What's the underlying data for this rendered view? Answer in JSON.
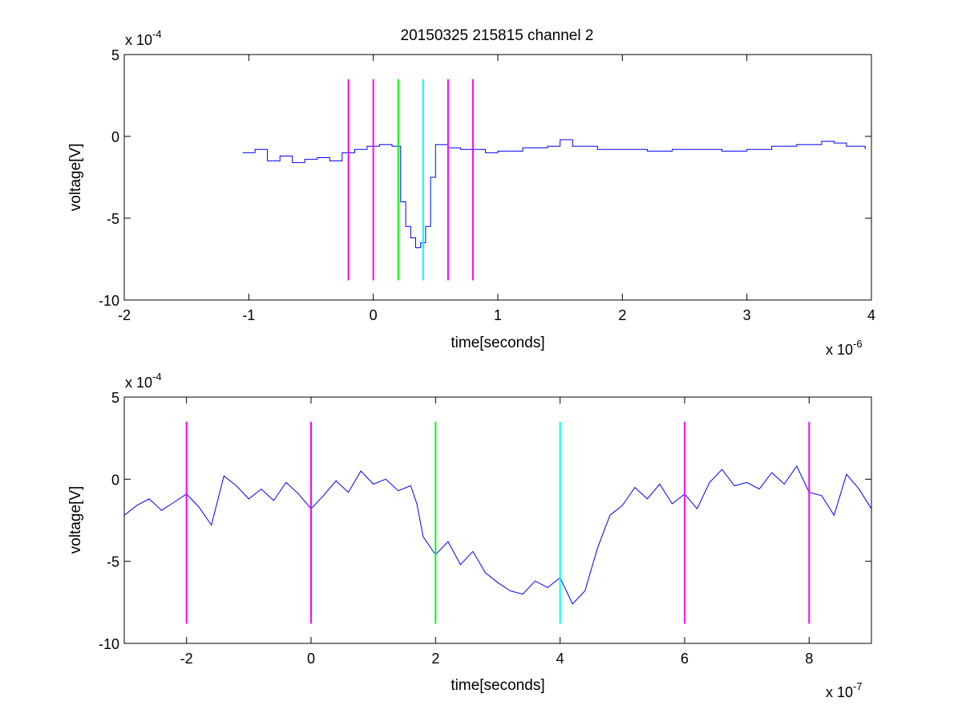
{
  "title": "20150325 215815 channel 2",
  "chart_data": [
    {
      "type": "line",
      "title": "20150325 215815 channel 2",
      "xlabel": "time[seconds]",
      "ylabel": "voltage[V]",
      "x_exponent_label": "x 10",
      "x_exponent": "-6",
      "y_exponent_label": "x 10",
      "y_exponent": "-4",
      "xlim": [
        -2,
        4
      ],
      "ylim": [
        -10,
        5
      ],
      "x_ticks": [
        -2,
        -1,
        0,
        1,
        2,
        3,
        4
      ],
      "y_ticks": [
        -10,
        -5,
        0,
        5
      ],
      "grid": false,
      "series": [
        {
          "color": "#0000ff",
          "style": "step",
          "x": [
            -1.05,
            -0.95,
            -0.85,
            -0.75,
            -0.65,
            -0.55,
            -0.45,
            -0.35,
            -0.25,
            -0.15,
            -0.05,
            0.05,
            0.15,
            0.22,
            0.26,
            0.3,
            0.34,
            0.38,
            0.42,
            0.46,
            0.5,
            0.6,
            0.7,
            0.8,
            0.9,
            1.0,
            1.2,
            1.4,
            1.5,
            1.6,
            1.8,
            2.0,
            2.2,
            2.4,
            2.6,
            2.8,
            3.0,
            3.2,
            3.4,
            3.6,
            3.7,
            3.8,
            3.95
          ],
          "y": [
            -1,
            -0.8,
            -1.5,
            -1.2,
            -1.6,
            -1.4,
            -1.3,
            -1.5,
            -1.0,
            -0.8,
            -0.6,
            -0.5,
            -0.6,
            -4.0,
            -5.5,
            -6.2,
            -6.8,
            -6.5,
            -5.5,
            -2.5,
            -0.5,
            -0.7,
            -0.8,
            -0.8,
            -1.0,
            -0.9,
            -0.7,
            -0.6,
            -0.2,
            -0.6,
            -0.8,
            -0.8,
            -0.9,
            -0.8,
            -0.8,
            -0.9,
            -0.8,
            -0.6,
            -0.5,
            -0.3,
            -0.4,
            -0.6,
            -0.8
          ]
        }
      ],
      "markers": [
        {
          "x": -0.2,
          "color": "#ff00ff"
        },
        {
          "x": 0.0,
          "color": "#ff00ff"
        },
        {
          "x": 0.2,
          "color": "#00ff00"
        },
        {
          "x": 0.4,
          "color": "#00ffff"
        },
        {
          "x": 0.6,
          "color": "#ff00ff"
        },
        {
          "x": 0.8,
          "color": "#ff00ff"
        }
      ],
      "marker_range": [
        -8.8,
        3.5
      ]
    },
    {
      "type": "line",
      "title": "",
      "xlabel": "time[seconds]",
      "ylabel": "voltage[V]",
      "x_exponent_label": "x 10",
      "x_exponent": "-7",
      "y_exponent_label": "x 10",
      "y_exponent": "-4",
      "xlim": [
        -3,
        9
      ],
      "ylim": [
        -10,
        5
      ],
      "x_ticks": [
        -2,
        0,
        2,
        4,
        6,
        8
      ],
      "y_ticks": [
        -10,
        -5,
        0,
        5
      ],
      "grid": false,
      "series": [
        {
          "color": "#0000ff",
          "style": "line",
          "x": [
            -3.0,
            -2.8,
            -2.6,
            -2.4,
            -2.2,
            -2.0,
            -1.8,
            -1.6,
            -1.4,
            -1.2,
            -1.0,
            -0.8,
            -0.6,
            -0.4,
            -0.2,
            0.0,
            0.2,
            0.4,
            0.6,
            0.8,
            1.0,
            1.2,
            1.4,
            1.6,
            1.7,
            1.8,
            2.0,
            2.2,
            2.4,
            2.6,
            2.8,
            3.0,
            3.2,
            3.4,
            3.6,
            3.8,
            4.0,
            4.2,
            4.4,
            4.6,
            4.8,
            5.0,
            5.2,
            5.4,
            5.6,
            5.8,
            6.0,
            6.2,
            6.4,
            6.6,
            6.8,
            7.0,
            7.2,
            7.4,
            7.6,
            7.8,
            8.0,
            8.2,
            8.4,
            8.6,
            8.8,
            9.0
          ],
          "y": [
            -2.2,
            -1.6,
            -1.2,
            -1.9,
            -1.4,
            -0.9,
            -1.7,
            -2.8,
            0.2,
            -0.4,
            -1.2,
            -0.6,
            -1.3,
            -0.2,
            -0.9,
            -1.8,
            -1.0,
            -0.1,
            -0.8,
            0.5,
            -0.3,
            0.0,
            -0.7,
            -0.4,
            -1.5,
            -3.5,
            -4.6,
            -3.8,
            -5.2,
            -4.4,
            -5.7,
            -6.3,
            -6.8,
            -7.0,
            -6.2,
            -6.6,
            -6.0,
            -7.6,
            -6.8,
            -4.2,
            -2.2,
            -1.6,
            -0.5,
            -1.2,
            -0.3,
            -1.5,
            -0.9,
            -1.8,
            -0.2,
            0.6,
            -0.4,
            -0.2,
            -0.6,
            0.4,
            -0.3,
            0.8,
            -0.8,
            -1.0,
            -2.2,
            0.3,
            -0.6,
            -1.8
          ]
        }
      ],
      "markers": [
        {
          "x": -2.0,
          "color": "#ff00ff"
        },
        {
          "x": 0.0,
          "color": "#ff00ff"
        },
        {
          "x": 2.0,
          "color": "#00ff00"
        },
        {
          "x": 4.0,
          "color": "#00ffff"
        },
        {
          "x": 6.0,
          "color": "#ff00ff"
        },
        {
          "x": 8.0,
          "color": "#ff00ff"
        }
      ],
      "marker_range": [
        -8.8,
        3.5
      ]
    }
  ]
}
